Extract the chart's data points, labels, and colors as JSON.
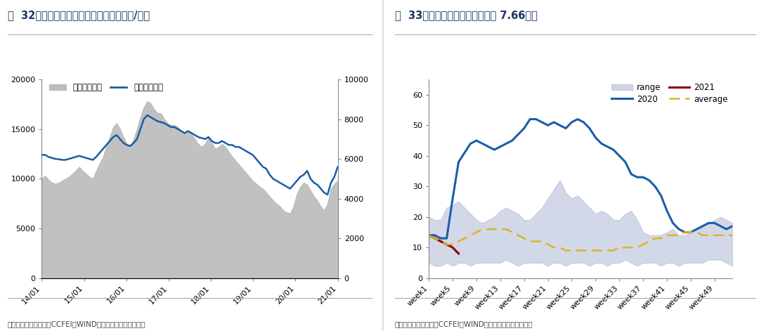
{
  "fig32": {
    "title": "图  32：粘胶短纤价格价差走势（日度，元/吨）",
    "source": "数据来源：华瑞信息，CCFEI，WIND，广发证券发展研究中心",
    "xticks": [
      "14/01",
      "15/01",
      "16/01",
      "17/01",
      "18/01",
      "19/01",
      "20/01",
      "21/01"
    ],
    "yleft_ticks": [
      0,
      5000,
      10000,
      15000,
      20000
    ],
    "yright_ticks": [
      0,
      2000,
      4000,
      6000,
      8000,
      10000
    ],
    "area_color": "#bbbbbb",
    "line_color": "#1a5ea8",
    "legend_area": "粘胶短纤价差",
    "legend_line": "粘胶短纤价格",
    "area_data_y": [
      10000,
      10300,
      9900,
      9600,
      9500,
      9600,
      9800,
      10000,
      10200,
      10500,
      10800,
      11200,
      10800,
      10500,
      10200,
      10000,
      10800,
      11500,
      12200,
      13200,
      14200,
      15200,
      15600,
      15000,
      14200,
      13500,
      13200,
      14000,
      15000,
      16200,
      17200,
      17800,
      17600,
      17000,
      16600,
      16600,
      16000,
      15600,
      15400,
      15400,
      15200,
      14800,
      14600,
      14800,
      14500,
      14000,
      13500,
      13200,
      13500,
      14200,
      13600,
      13000,
      13200,
      13500,
      13200,
      12700,
      12200,
      11800,
      11400,
      11000,
      10600,
      10200,
      9800,
      9500,
      9200,
      9000,
      8600,
      8200,
      7800,
      7500,
      7200,
      6800,
      6600,
      6500,
      7200,
      8500,
      9200,
      9600,
      9400,
      8800,
      8200,
      7800,
      7200,
      6800,
      7500,
      9000,
      9500,
      9800
    ],
    "line_data_y": [
      6200,
      6200,
      6100,
      6050,
      6000,
      5980,
      5950,
      5950,
      6000,
      6050,
      6100,
      6150,
      6100,
      6050,
      6000,
      5950,
      6100,
      6300,
      6500,
      6700,
      6900,
      7100,
      7200,
      7000,
      6800,
      6700,
      6650,
      6800,
      7000,
      7500,
      8000,
      8200,
      8100,
      8000,
      7900,
      7850,
      7800,
      7700,
      7600,
      7600,
      7500,
      7400,
      7300,
      7400,
      7300,
      7200,
      7100,
      7050,
      7000,
      7100,
      6900,
      6800,
      6800,
      6900,
      6800,
      6700,
      6700,
      6600,
      6600,
      6500,
      6400,
      6300,
      6200,
      6000,
      5800,
      5600,
      5500,
      5200,
      5000,
      4900,
      4800,
      4700,
      4600,
      4500,
      4700,
      4900,
      5100,
      5200,
      5400,
      5000,
      4800,
      4700,
      4500,
      4300,
      4200,
      4800,
      5100,
      5600
    ],
    "yleft_max": 20000,
    "yright_max": 10000
  },
  "fig33": {
    "title": "图  33：粘胶短纤库存走势（周度 7.66天）",
    "source": "数据来源：华瑞信息，CCFEI，WIND，广发证券发展研究中心",
    "xticks": [
      "week1",
      "week5",
      "week9",
      "week13",
      "week17",
      "week21",
      "week25",
      "week29",
      "week33",
      "week37",
      "week41",
      "week45",
      "week49"
    ],
    "yticks": [
      0,
      10,
      20,
      30,
      40,
      50,
      60
    ],
    "range_color": "#b0b8d8",
    "line2020_color": "#1a5ea8",
    "line2021_color": "#8b0000",
    "avg_color": "#dab520",
    "range_low": [
      5,
      4,
      4,
      5,
      4,
      5,
      5,
      4,
      5,
      5,
      5,
      5,
      5,
      6,
      5,
      4,
      5,
      5,
      5,
      5,
      4,
      5,
      5,
      4,
      5,
      5,
      5,
      4,
      5,
      5,
      4,
      5,
      5,
      6,
      5,
      4,
      5,
      5,
      5,
      4,
      5,
      5,
      4,
      5,
      5,
      5,
      5,
      6,
      6,
      6,
      5,
      4
    ],
    "range_high": [
      20,
      19,
      19,
      23,
      24,
      25,
      23,
      21,
      19,
      18,
      19,
      20,
      22,
      23,
      22,
      21,
      19,
      19,
      21,
      23,
      26,
      29,
      32,
      28,
      26,
      27,
      25,
      23,
      21,
      22,
      21,
      19,
      19,
      21,
      22,
      19,
      15,
      14,
      14,
      14,
      15,
      16,
      14,
      14,
      15,
      16,
      17,
      18,
      19,
      20,
      19,
      18
    ],
    "line2020": [
      14,
      14,
      13,
      13,
      26,
      38,
      41,
      44,
      45,
      44,
      43,
      42,
      43,
      44,
      45,
      47,
      49,
      52,
      52,
      51,
      50,
      51,
      50,
      49,
      51,
      52,
      51,
      49,
      46,
      44,
      43,
      42,
      40,
      38,
      34,
      33,
      33,
      32,
      30,
      27,
      22,
      18,
      16,
      15,
      15,
      16,
      17,
      18,
      18,
      17,
      16,
      17
    ],
    "line2021": [
      14,
      13,
      12,
      11,
      10,
      8
    ],
    "average": [
      14,
      13,
      12,
      11,
      11,
      12,
      13,
      14,
      15,
      16,
      16,
      16,
      16,
      16,
      15,
      14,
      13,
      12,
      12,
      12,
      11,
      10,
      10,
      9,
      9,
      9,
      9,
      9,
      9,
      9,
      9,
      9,
      10,
      10,
      10,
      10,
      11,
      12,
      13,
      13,
      14,
      14,
      14,
      15,
      15,
      15,
      14,
      14,
      14,
      14,
      14,
      14
    ],
    "ymax": 65
  }
}
